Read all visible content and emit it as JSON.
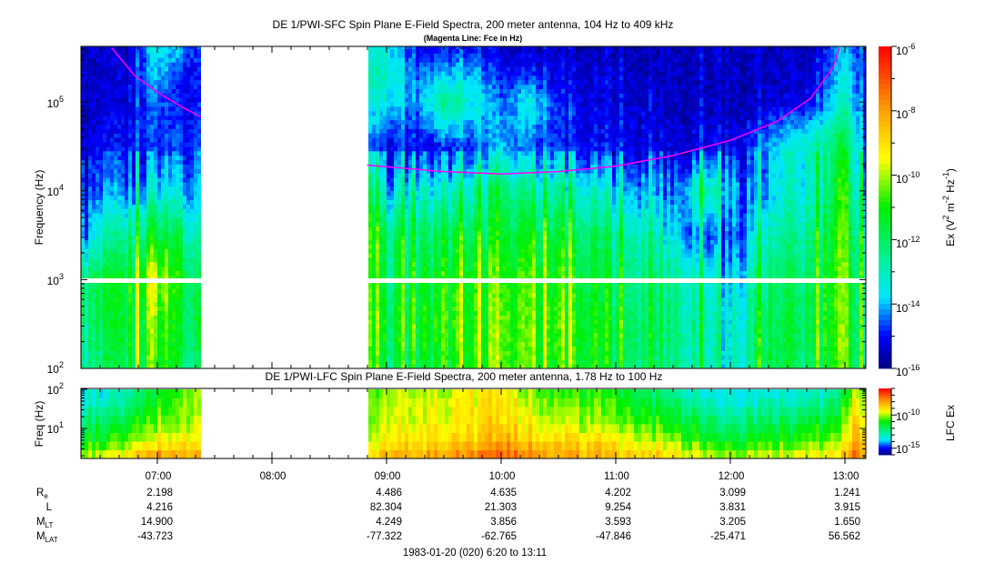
{
  "chart_data": {
    "type": "heatmap",
    "title": "DE 1/PWI-SFC  Spin Plane E-Field Spectra, 200 meter antenna, 104 Hz to 409 kHz",
    "subtitle": "(Magenta Line: Fce in Hz)",
    "sfc": {
      "ylabel": "Frequency (Hz)",
      "yscale": "log",
      "ylim_hz": [
        100,
        409000
      ],
      "yticks": [
        {
          "base": "10",
          "exp": "2"
        },
        {
          "base": "10",
          "exp": "3"
        },
        {
          "base": "10",
          "exp": "4"
        },
        {
          "base": "10",
          "exp": "5"
        }
      ],
      "colorbar_label": {
        "main": "Ex (V",
        "e1": "2",
        "mid": " m",
        "e2": "-2",
        "mid2": " Hz",
        "e3": "-1",
        "end": ")"
      },
      "colorbar_range_log10": [
        -16,
        -6
      ],
      "colorbar_ticks": [
        {
          "base": "10",
          "exp": "-6"
        },
        {
          "base": "10",
          "exp": "-8"
        },
        {
          "base": "10",
          "exp": "-10"
        },
        {
          "base": "10",
          "exp": "-12"
        },
        {
          "base": "10",
          "exp": "-14"
        },
        {
          "base": "10",
          "exp": "-16"
        }
      ],
      "data_gap_hours": [
        7.38,
        8.83
      ],
      "grid_times_hours": [
        6.33,
        6.5,
        6.75,
        7.0,
        7.2,
        7.38,
        8.83,
        9.0,
        9.25,
        9.5,
        9.75,
        10.0,
        10.25,
        10.5,
        10.75,
        11.0,
        11.25,
        11.5,
        11.75,
        12.0,
        12.25,
        12.5,
        12.75,
        13.0,
        13.18
      ],
      "grid_log10_freq": [
        2.0,
        2.5,
        3.0,
        3.5,
        4.0,
        4.5,
        5.0,
        5.3,
        5.6
      ],
      "log10_ex": [
        [
          -12.8,
          -12.5,
          -12.3,
          -14.5,
          -15,
          -15.3,
          -15.5,
          -15.5,
          -15.5
        ],
        [
          -12.5,
          -12.3,
          -12.0,
          -13.5,
          -14.8,
          -15.2,
          -15.5,
          -15.5,
          -15.5
        ],
        [
          -11.8,
          -11.5,
          -11.5,
          -12.5,
          -14.5,
          -15,
          -15.3,
          -15.3,
          -15.5
        ],
        [
          -10.8,
          -10.5,
          -9.8,
          -11.5,
          -13.5,
          -14.8,
          -14.5,
          -14,
          -13.5
        ],
        [
          -11.5,
          -11.3,
          -11,
          -11.8,
          -13.5,
          -14.5,
          -15,
          -15,
          -14
        ],
        [
          -12.5,
          -12,
          -12.5,
          -13.5,
          -14.5,
          -15,
          -15,
          -15,
          -15
        ],
        [
          -12.5,
          -12.3,
          -12.5,
          -12.3,
          -13.5,
          -15,
          -14,
          -13.5,
          -14
        ],
        [
          -12,
          -11.5,
          -12,
          -12.0,
          -13.8,
          -15,
          -13.5,
          -13,
          -13.5
        ],
        [
          -12,
          -11.5,
          -11.8,
          -12.3,
          -13.5,
          -15.2,
          -14.5,
          -14.5,
          -15
        ],
        [
          -11.5,
          -11.2,
          -11.5,
          -12,
          -13.5,
          -15,
          -12.5,
          -14,
          -15
        ],
        [
          -11,
          -11,
          -11,
          -11.8,
          -13,
          -14.8,
          -13.5,
          -14,
          -15
        ],
        [
          -10.5,
          -10.5,
          -10.8,
          -11.5,
          -12,
          -14,
          -14.5,
          -15,
          -15.5
        ],
        [
          -11,
          -11,
          -11.2,
          -11.8,
          -13,
          -14.8,
          -13.5,
          -15,
          -15.5
        ],
        [
          -11.5,
          -11.2,
          -11.5,
          -12,
          -13.2,
          -15,
          -15,
          -15.3,
          -15.5
        ],
        [
          -11,
          -11,
          -11.3,
          -11.8,
          -13,
          -15,
          -15.2,
          -15.3,
          -15.5
        ],
        [
          -11.8,
          -11.5,
          -12,
          -12.5,
          -13.8,
          -15,
          -15.3,
          -15.3,
          -15.5
        ],
        [
          -12,
          -12,
          -12.3,
          -12.8,
          -14,
          -15.2,
          -15.3,
          -15.5,
          -15.5
        ],
        [
          -12.3,
          -12.2,
          -12.5,
          -13.5,
          -14.5,
          -15.3,
          -15.5,
          -15.5,
          -15.5
        ],
        [
          -12.8,
          -12.8,
          -13,
          -14.5,
          -12.5,
          -15.2,
          -15.5,
          -15.5,
          -15.5
        ],
        [
          -13.5,
          -13.5,
          -14,
          -14.8,
          -14,
          -15.2,
          -15.5,
          -15.5,
          -15.5
        ],
        [
          -11.8,
          -12,
          -12.5,
          -13.2,
          -14.5,
          -14.5,
          -15.5,
          -15.5,
          -15.5
        ],
        [
          -12,
          -12,
          -12.3,
          -12.8,
          -13.5,
          -13.5,
          -15.3,
          -15.5,
          -15.5
        ],
        [
          -12,
          -11.8,
          -12,
          -12.3,
          -13.2,
          -13,
          -15,
          -15.3,
          -15.5
        ],
        [
          -10.5,
          -10.5,
          -10.5,
          -10.8,
          -11,
          -11.5,
          -13,
          -13.5,
          -14
        ],
        [
          -12.5,
          -12.5,
          -12.5,
          -13,
          -14,
          -14.5,
          -15,
          -15,
          -15
        ]
      ],
      "fce_line": {
        "color": "#ff00ff",
        "segments": [
          [
            [
              6.6,
              409000
            ],
            [
              6.8,
              200000
            ],
            [
              7.0,
              130000
            ],
            [
              7.2,
              90000
            ],
            [
              7.38,
              68000
            ]
          ],
          [
            [
              8.83,
              19500
            ],
            [
              9.5,
              16500
            ],
            [
              10.0,
              15500
            ],
            [
              10.5,
              16500
            ],
            [
              11.0,
              19000
            ],
            [
              11.5,
              25000
            ],
            [
              12.0,
              37000
            ],
            [
              12.4,
              60000
            ],
            [
              12.7,
              110000
            ],
            [
              12.9,
              250000
            ],
            [
              12.95,
              409000
            ]
          ]
        ]
      }
    },
    "lfc": {
      "title": "DE 1/PWI-LFC  Spin Plane E-Field Spectra, 200 meter antenna, 1.78 Hz to 100 Hz",
      "ylabel": "Freq (Hz)",
      "yscale": "log",
      "ylim_hz": [
        1.78,
        100
      ],
      "yticks": [
        {
          "base": "10",
          "exp": "1"
        },
        {
          "base": "10",
          "exp": "2"
        }
      ],
      "colorbar_label": "LFC Ex",
      "colorbar_range_log10": [
        -16,
        -6
      ],
      "colorbar_ticks": [
        {
          "base": "10",
          "exp": "-10"
        },
        {
          "base": "10",
          "exp": "-15"
        }
      ],
      "grid_times_hours": [
        6.33,
        6.75,
        7.0,
        7.3,
        8.83,
        9.5,
        10.0,
        10.5,
        11.0,
        11.5,
        12.0,
        12.5,
        12.9,
        13.1
      ],
      "grid_log10_freq": [
        0.25,
        0.75,
        1.25,
        1.75,
        2.0
      ],
      "log10_ex": [
        [
          -9.8,
          -11.5,
          -12.3,
          -13.5,
          -13.5
        ],
        [
          -9,
          -10.8,
          -11.8,
          -12.8,
          -13
        ],
        [
          -7.8,
          -9.5,
          -10.5,
          -11,
          -11.2
        ],
        [
          -8,
          -9.5,
          -10,
          -10.2,
          -10.5
        ],
        [
          -8.5,
          -9.5,
          -10,
          -10,
          -10.5
        ],
        [
          -8,
          -9,
          -9.5,
          -9.5,
          -10
        ],
        [
          -7.3,
          -8.5,
          -9,
          -9,
          -9.5
        ],
        [
          -8,
          -9,
          -10,
          -10.5,
          -11
        ],
        [
          -8.5,
          -9.5,
          -10.5,
          -11,
          -11.5
        ],
        [
          -9,
          -10.5,
          -11.5,
          -12.5,
          -13
        ],
        [
          -10,
          -11.5,
          -12.5,
          -13.5,
          -13.5
        ],
        [
          -9.5,
          -11,
          -12,
          -13,
          -13.5
        ],
        [
          -9,
          -10.5,
          -11.5,
          -12.5,
          -13
        ],
        [
          -7.5,
          -8.5,
          -9,
          -9.5,
          -10
        ]
      ]
    },
    "xaxis": {
      "range_hours": [
        6.3333,
        13.1833
      ],
      "ticks": [
        {
          "hour": 7,
          "label": "07:00"
        },
        {
          "hour": 8,
          "label": "08:00"
        },
        {
          "hour": 9,
          "label": "09:00"
        },
        {
          "hour": 10,
          "label": "10:00"
        },
        {
          "hour": 11,
          "label": "11:00"
        },
        {
          "hour": 12,
          "label": "12:00"
        },
        {
          "hour": 13,
          "label": "13:00"
        }
      ]
    },
    "ephemeris": {
      "rows": [
        {
          "main": "R",
          "sub": "e",
          "values": [
            "2.198",
            "",
            "4.486",
            "4.635",
            "4.202",
            "3.099",
            "1.241"
          ]
        },
        {
          "main": "L",
          "sub": "",
          "values": [
            "4.216",
            "",
            "82.304",
            "21.303",
            "9.254",
            "3.831",
            "3.915"
          ]
        },
        {
          "main": "M",
          "sub": "LT",
          "values": [
            "14.900",
            "",
            "4.249",
            "3.856",
            "3.593",
            "3.205",
            "1.650"
          ]
        },
        {
          "main": "M",
          "sub": "LAT",
          "values": [
            "-43.723",
            "",
            "-77.322",
            "-62.765",
            "-47.846",
            "-25.471",
            "56.562"
          ]
        }
      ]
    },
    "date_range": "1983-01-20 (020) 6:20 to 13:11"
  }
}
